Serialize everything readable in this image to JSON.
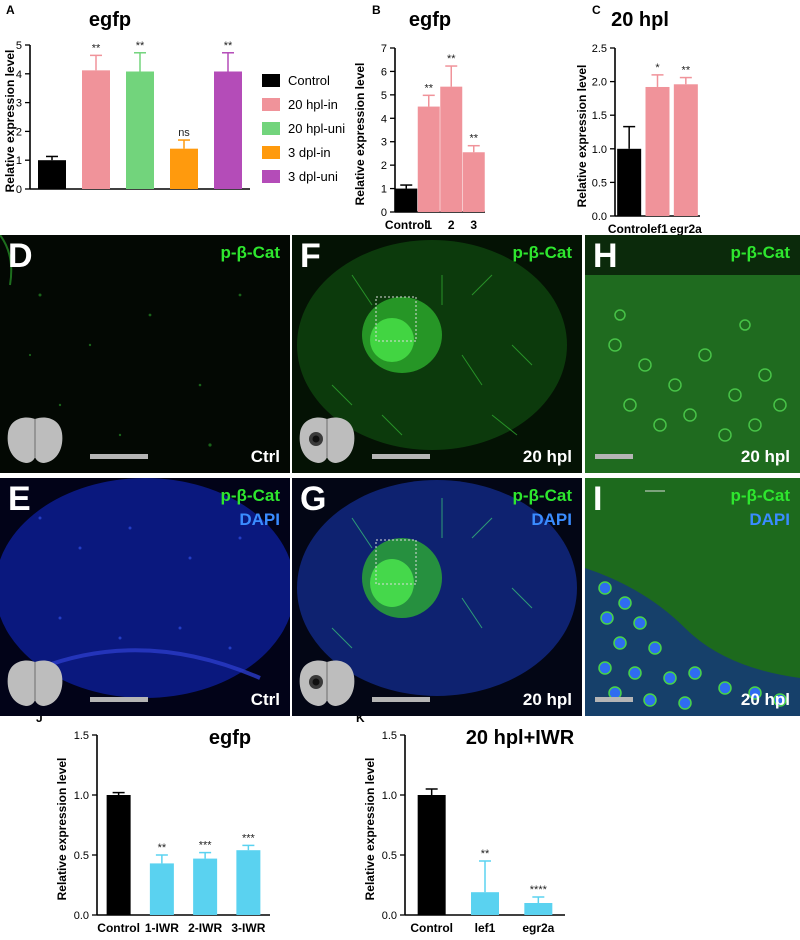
{
  "chart_data": [
    {
      "panel": "A",
      "type": "bar",
      "title": "egfp",
      "ylabel": "Relative expression level",
      "ylim": [
        0,
        5
      ],
      "yticks": [
        "0",
        "1",
        "2",
        "3",
        "4",
        "5"
      ],
      "categories": [
        "Control",
        "20 hpl-in",
        "20 hpl-uni",
        "3 dpl-in",
        "3 dpl-uni"
      ],
      "values": [
        1.0,
        4.12,
        4.08,
        1.4,
        4.08
      ],
      "errors": [
        0.13,
        0.52,
        0.65,
        0.3,
        0.65
      ],
      "significance": [
        "",
        "**",
        "**",
        "ns",
        "**"
      ],
      "colors": [
        "#000000",
        "#f0939a",
        "#72d47c",
        "#ff9a0d",
        "#b44cb8"
      ],
      "legend": [
        "Control",
        "20 hpl-in",
        "20 hpl-uni",
        "3 dpl-in",
        "3 dpl-uni"
      ],
      "legend_position": "right"
    },
    {
      "panel": "B",
      "type": "bar",
      "title": "egfp",
      "ylabel": "Relative expression level",
      "ylim": [
        0,
        7
      ],
      "yticks": [
        "0",
        "1",
        "2",
        "3",
        "4",
        "5",
        "6",
        "7"
      ],
      "categories": [
        "Control",
        "1",
        "2",
        "3"
      ],
      "values": [
        1.0,
        4.5,
        5.35,
        2.55
      ],
      "errors": [
        0.15,
        0.48,
        0.88,
        0.28
      ],
      "significance": [
        "",
        "**",
        "**",
        "**"
      ],
      "colors": [
        "#000000",
        "#f0939a",
        "#f0939a",
        "#f0939a"
      ]
    },
    {
      "panel": "C",
      "type": "bar",
      "title": "20 hpl",
      "ylabel": "Relative expression level",
      "ylim": [
        0,
        2.5
      ],
      "yticks": [
        "0.0",
        "0.5",
        "1.0",
        "1.5",
        "2.0",
        "2.5"
      ],
      "categories": [
        "Control",
        "lef1",
        "egr2a"
      ],
      "values": [
        1.0,
        1.92,
        1.96
      ],
      "errors": [
        0.33,
        0.18,
        0.1
      ],
      "significance": [
        "",
        "*",
        "**"
      ],
      "colors": [
        "#000000",
        "#f0939a",
        "#f0939a"
      ]
    },
    {
      "panel": "J",
      "type": "bar",
      "title": "egfp",
      "ylabel": "Relative expression level",
      "ylim": [
        0,
        1.5
      ],
      "yticks": [
        "0.0",
        "0.5",
        "1.0",
        "1.5"
      ],
      "categories": [
        "Control",
        "1-IWR",
        "2-IWR",
        "3-IWR"
      ],
      "values": [
        1.0,
        0.43,
        0.47,
        0.54
      ],
      "errors": [
        0.02,
        0.07,
        0.05,
        0.04
      ],
      "significance": [
        "",
        "**",
        "***",
        "***"
      ],
      "colors": [
        "#000000",
        "#5ad2f0",
        "#5ad2f0",
        "#5ad2f0"
      ]
    },
    {
      "panel": "K",
      "type": "bar",
      "title": "20 hpl+IWR",
      "ylabel": "Relative expression level",
      "ylim": [
        0,
        1.5
      ],
      "yticks": [
        "0.0",
        "0.5",
        "1.0",
        "1.5"
      ],
      "categories": [
        "Control",
        "lef1",
        "egr2a"
      ],
      "values": [
        1.0,
        0.19,
        0.1
      ],
      "errors": [
        0.05,
        0.26,
        0.05
      ],
      "significance": [
        "",
        "**",
        "****"
      ],
      "colors": [
        "#000000",
        "#5ad2f0",
        "#5ad2f0"
      ]
    }
  ],
  "micrographs": [
    {
      "letter": "D",
      "green": "p-β-Cat",
      "blue": "",
      "condition": "Ctrl"
    },
    {
      "letter": "F",
      "green": "p-β-Cat",
      "blue": "",
      "condition": "20 hpl"
    },
    {
      "letter": "H",
      "green": "p-β-Cat",
      "blue": "",
      "condition": "20 hpl"
    },
    {
      "letter": "E",
      "green": "p-β-Cat",
      "blue": "DAPI",
      "condition": "Ctrl"
    },
    {
      "letter": "G",
      "green": "p-β-Cat",
      "blue": "DAPI",
      "condition": "20 hpl"
    },
    {
      "letter": "I",
      "green": "p-β-Cat",
      "blue": "DAPI",
      "condition": "20 hpl"
    }
  ]
}
